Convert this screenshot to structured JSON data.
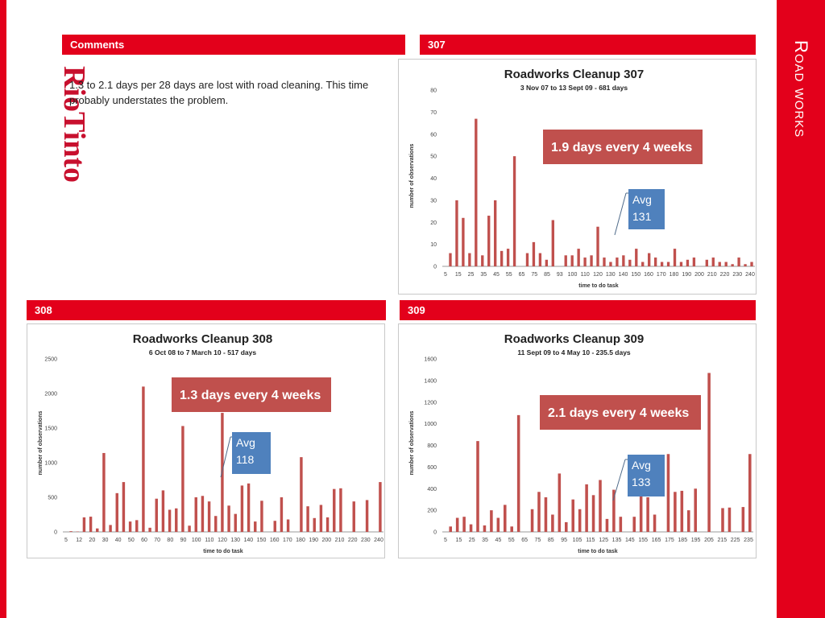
{
  "slide": {
    "side_title": "Road works",
    "logo": "RioTinto"
  },
  "comments": {
    "header": "Comments",
    "text": "1.3 to 2.1 days per 28 days are lost with road cleaning.  This time probably  understates the problem."
  },
  "panels": {
    "p307": {
      "header": "307"
    },
    "p308": {
      "header": "308"
    },
    "p309": {
      "header": "309"
    }
  },
  "colors": {
    "accent": "#e3001b",
    "bar": "#c0504d",
    "avg_box": "#4f81bd"
  },
  "chart_data": [
    {
      "id": "307",
      "type": "bar",
      "title": "Roadworks Cleanup 307",
      "subtitle": "3 Nov 07 to 13 Sept 09 - 681 days",
      "xlabel": "time to do task",
      "ylabel": "number of observations",
      "ylim": [
        0,
        80
      ],
      "yticks": [
        0,
        10,
        20,
        30,
        40,
        50,
        60,
        70,
        80
      ],
      "xtick_labels": [
        "5",
        "15",
        "25",
        "35",
        "45",
        "55",
        "65",
        "75",
        "85",
        "93",
        "100",
        "110",
        "120",
        "130",
        "140",
        "150",
        "160",
        "170",
        "180",
        "190",
        "200",
        "210",
        "220",
        "230",
        "240"
      ],
      "values": [
        6,
        30,
        22,
        6,
        67,
        5,
        23,
        30,
        7,
        8,
        50,
        0,
        6,
        11,
        6,
        3,
        21,
        0,
        5,
        5,
        8,
        4,
        5,
        18,
        4,
        2,
        4,
        5,
        3,
        8,
        2,
        6,
        4,
        2,
        2,
        8,
        2,
        3,
        4,
        0,
        3,
        4,
        2,
        2,
        1,
        4,
        1,
        2
      ],
      "callout": "1.9 days every 4 weeks",
      "avg_label": "Avg",
      "avg_value": "131",
      "grid": false
    },
    {
      "id": "308",
      "type": "bar",
      "title": "Roadworks Cleanup 308",
      "subtitle": "6 Oct 08 to  7 March 10 - 517 days",
      "xlabel": "time to do task",
      "ylabel": "number of observations",
      "ylim": [
        0,
        2500
      ],
      "yticks": [
        0,
        500,
        1000,
        1500,
        2000,
        2500
      ],
      "xtick_labels": [
        "5",
        "12",
        "20",
        "30",
        "40",
        "50",
        "60",
        "70",
        "80",
        "90",
        "100",
        "110",
        "120",
        "130",
        "140",
        "150",
        "160",
        "170",
        "180",
        "190",
        "200",
        "210",
        "220",
        "230",
        "240"
      ],
      "values": [
        10,
        5,
        210,
        220,
        50,
        1140,
        100,
        560,
        720,
        150,
        170,
        2100,
        60,
        480,
        600,
        320,
        340,
        1530,
        90,
        500,
        520,
        440,
        230,
        1720,
        380,
        260,
        670,
        700,
        150,
        450,
        0,
        160,
        500,
        180,
        0,
        1080,
        370,
        200,
        390,
        210,
        620,
        630,
        0,
        440,
        0,
        460,
        0,
        720
      ],
      "callout": "1.3 days every 4 weeks",
      "avg_label": "Avg",
      "avg_value": "118",
      "grid": false
    },
    {
      "id": "309",
      "type": "bar",
      "title": "Roadworks Cleanup 309",
      "subtitle": "11 Sept 09 to 4 May 10 - 235.5 days",
      "xlabel": "time to do task",
      "ylabel": "number of observations",
      "ylim": [
        0,
        1600
      ],
      "yticks": [
        0,
        200,
        400,
        600,
        800,
        1000,
        1200,
        1400,
        1600
      ],
      "xtick_labels": [
        "5",
        "15",
        "25",
        "35",
        "45",
        "55",
        "65",
        "75",
        "85",
        "95",
        "105",
        "115",
        "125",
        "135",
        "145",
        "155",
        "165",
        "175",
        "185",
        "195",
        "205",
        "215",
        "225",
        "235"
      ],
      "values": [
        50,
        130,
        140,
        70,
        840,
        60,
        200,
        130,
        250,
        50,
        1080,
        0,
        210,
        370,
        320,
        160,
        540,
        90,
        300,
        210,
        440,
        340,
        480,
        120,
        390,
        140,
        0,
        140,
        600,
        320,
        160,
        0,
        720,
        370,
        380,
        200,
        400,
        0,
        1470,
        0,
        220,
        225,
        0,
        230,
        720
      ],
      "callout": "2.1 days every 4 weeks",
      "avg_label": "Avg",
      "avg_value": "133",
      "grid": false
    }
  ]
}
